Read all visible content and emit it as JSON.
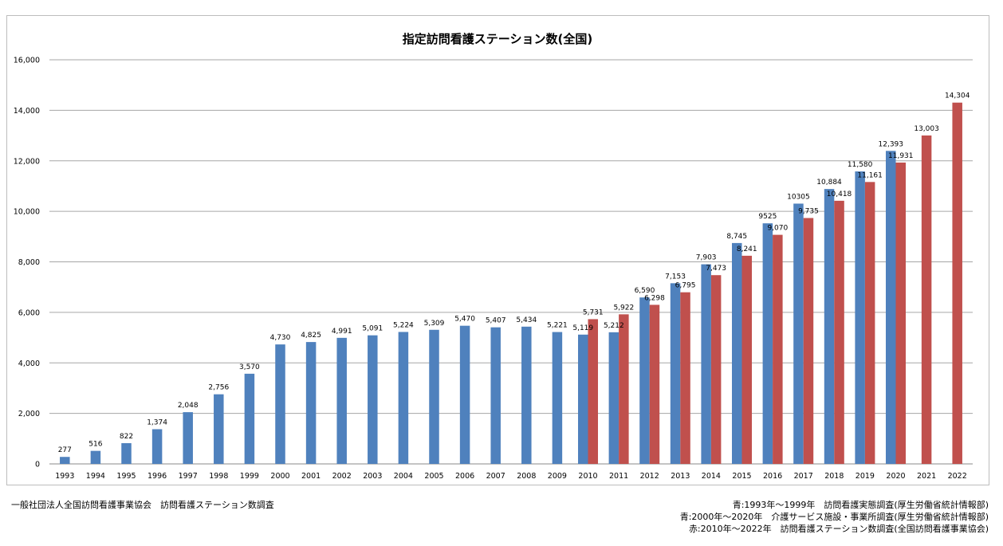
{
  "chart_data": {
    "type": "bar",
    "title": "指定訪問看護ステーション数(全国)",
    "categories": [
      "1993",
      "1994",
      "1995",
      "1996",
      "1997",
      "1998",
      "1999",
      "2000",
      "2001",
      "2002",
      "2003",
      "2004",
      "2005",
      "2006",
      "2007",
      "2008",
      "2009",
      "2010",
      "2011",
      "2012",
      "2013",
      "2014",
      "2015",
      "2016",
      "2017",
      "2018",
      "2019",
      "2020",
      "2021",
      "2022"
    ],
    "ylim": [
      0,
      16000
    ],
    "yticks": [
      "0",
      "2,000",
      "4,000",
      "6,000",
      "8,000",
      "10,000",
      "12,000",
      "14,000",
      "16,000"
    ],
    "grid": true,
    "series": [
      {
        "color": "#4f81bd",
        "values": [
          277,
          516,
          822,
          1374,
          2048,
          2756,
          3570,
          4730,
          4825,
          4991,
          5091,
          5224,
          5309,
          5470,
          5407,
          5434,
          5221,
          5119,
          5212,
          6590,
          7153,
          7903,
          8745,
          9525,
          10305,
          10884,
          11580,
          12393,
          null,
          null
        ],
        "labels": [
          "277",
          "516",
          "822",
          "1,374",
          "2,048",
          "2,756",
          "3,570",
          "4,730",
          "4,825",
          "4,991",
          "5,091",
          "5,224",
          "5,309",
          "5,470",
          "5,407",
          "5,434",
          "5,221",
          "5,119",
          "5,212",
          "6,590",
          "7,153",
          "7,903",
          "8,745",
          "9525",
          "10305",
          "10,884",
          "11,580",
          "12,393",
          "",
          ""
        ]
      },
      {
        "color": "#c0504d",
        "values": [
          null,
          null,
          null,
          null,
          null,
          null,
          null,
          null,
          null,
          null,
          null,
          null,
          null,
          null,
          null,
          null,
          null,
          5731,
          5922,
          6298,
          6795,
          7473,
          8241,
          9070,
          9735,
          10418,
          11161,
          11931,
          13003,
          14304
        ],
        "labels": [
          "",
          "",
          "",
          "",
          "",
          "",
          "",
          "",
          "",
          "",
          "",
          "",
          "",
          "",
          "",
          "",
          "",
          "5,731",
          "5,922",
          "6,298",
          "6,795",
          "7,473",
          "8,241",
          "9,070",
          "9,735",
          "10,418",
          "11,161",
          "11,931",
          "13,003",
          "14,304"
        ]
      }
    ]
  },
  "footer": {
    "source": "一般社団法人全国訪問看護事業協会　訪問看護ステーション数調査",
    "notes": [
      "青:1993年～1999年　訪問看護実態調査(厚生労働省統計情報部)",
      "青:2000年～2020年　介護サービス施設・事業所調査(厚生労働省統計情報部)",
      "赤:2010年～2022年　訪問看護ステーション数調査(全国訪問看護事業協会)"
    ]
  }
}
